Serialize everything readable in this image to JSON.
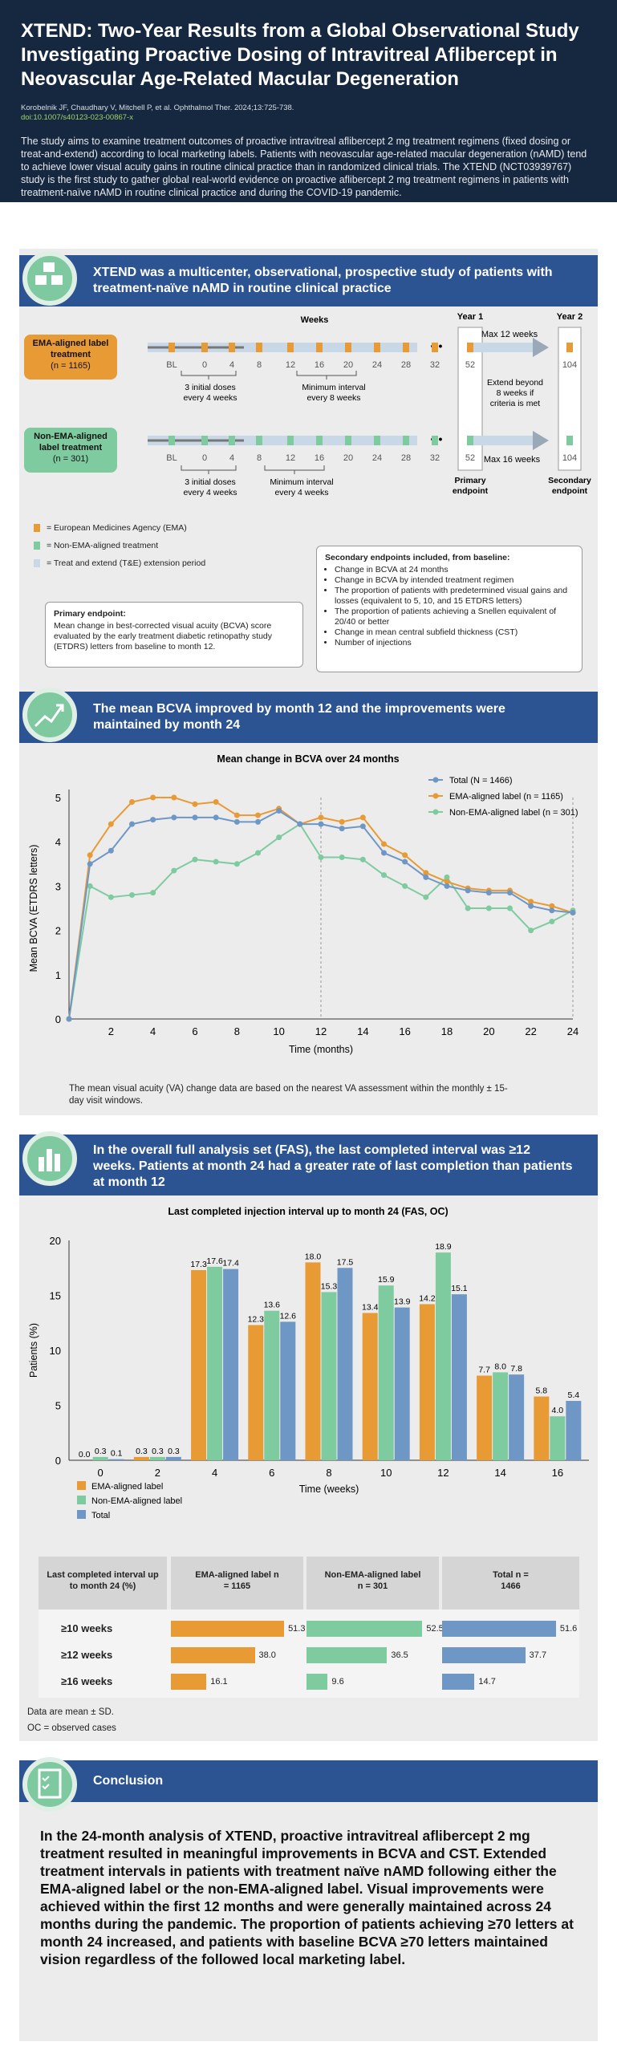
{
  "header": {
    "title": "XTEND: Two-Year Results from a Global Observational Study Investigating Proactive Dosing of Intravitreal Aflibercept in Neovascular Age-Related Macular Degeneration",
    "citation": "Korobelnik JF, Chaudhary V, Mitchell P, et al. Ophthalmol Ther. 2024;13:725-738.",
    "doi": "doi:10.1007/s40123-023-00867-x",
    "intro": "The study aims to examine treatment outcomes of proactive intravitreal aflibercept 2 mg treatment regimens (fixed dosing or treat-and-extend) according to local marketing labels. Patients with neovascular age-related macular degeneration (nAMD) tend to achieve lower visual acuity gains in routine clinical practice than in randomized clinical trials. The XTEND (NCT03939767) study is the first study to gather global real-world evidence on proactive aflibercept 2 mg treatment regimens in patients with treatment-naïve nAMD in routine clinical practice and during the COVID-19 pandemic."
  },
  "section1": {
    "banner": "XTEND was a multicenter, observational, prospective study of patients with treatment-naïve nAMD in routine clinical practice",
    "weeks_label": "Weeks",
    "year1": "Year 1",
    "year2": "Year 2",
    "ema_label": "EMA-aligned label treatment",
    "ema_n": "(n = 1165)",
    "nonema_label": "Non-EMA-aligned label treatment",
    "nonema_n": "(n = 301)",
    "ema_ticks": [
      "BL",
      "0",
      "4",
      "8",
      "12",
      "16",
      "20",
      "24",
      "28",
      "32"
    ],
    "nonema_ticks": [
      "BL",
      "0",
      "4",
      "8",
      "12",
      "16",
      "20",
      "24",
      "28",
      "32"
    ],
    "ema_52": "52",
    "ema_104": "104",
    "nonema_52": "52",
    "nonema_104": "104",
    "max12": "Max 12 weeks",
    "max16": "Max 16 weeks",
    "extend": "Extend beyond 8 weeks if criteria is met",
    "ema_initial": "3 initial doses every 4 weeks",
    "ema_min": "Minimum interval every 8 weeks",
    "nonema_initial": "3 initial doses every 4 weeks",
    "nonema_min": "Minimum interval every 4 weeks",
    "primary_endpoint_marker": "Primary endpoint",
    "secondary_endpoint_marker": "Secondary endpoint",
    "legend": [
      {
        "text": "= European Medicines Agency (EMA)",
        "color": "#e89a35"
      },
      {
        "text": "= Non-EMA-aligned treatment",
        "color": "#7ecba0"
      },
      {
        "text": "= Treat and extend (T&E) extension period",
        "color": "#c9d8e6"
      }
    ],
    "primary_title": "Primary endpoint:",
    "primary_text": "Mean change in best-corrected visual acuity (BCVA) score evaluated by the early treatment diabetic retinopathy study (ETDRS) letters from baseline to month 12.",
    "secondary_title": "Secondary endpoints included, from baseline:",
    "secondary_items": [
      "Change in BCVA at 24 months",
      "Change in BCVA by intended treatment regimen",
      "The proportion of patients with predetermined visual gains and losses (equivalent to 5, 10, and 15 ETDRS letters)",
      "The proportion of patients achieving a Snellen equivalent of 20/40 or better",
      "Change in mean central subfield thickness (CST)",
      "Number of injections"
    ]
  },
  "section2": {
    "banner": "The mean BCVA improved by month 12 and the improvements were maintained by month 24",
    "footnote": "The mean visual acuity (VA) change data are based on the nearest VA assessment within the monthly ± 15-day visit windows."
  },
  "section3": {
    "banner": "In the overall full analysis set (FAS), the last completed interval was ≥12 weeks. Patients at month 24 had a greater rate of last completion than patients at month 12",
    "table": {
      "headers": [
        "Last completed interval up to month 24 (%)",
        "EMA-aligned label n = 1165",
        "Non-EMA-aligned label n = 301",
        "Total n = 1466"
      ],
      "rows": [
        {
          "label": "≥10 weeks",
          "values": [
            51.3,
            52.5,
            51.6
          ]
        },
        {
          "label": "≥12 weeks",
          "values": [
            38.0,
            36.5,
            37.7
          ]
        },
        {
          "label": "≥16 weeks",
          "values": [
            16.1,
            9.6,
            14.7
          ]
        }
      ]
    },
    "note1": "Data are mean ± SD.",
    "note2": "OC = observed cases"
  },
  "section4": {
    "banner": "Conclusion",
    "text": "In the 24-month analysis of XTEND, proactive intravitreal aflibercept 2 mg treatment resulted in meaningful improvements in BCVA and CST. Extended treatment intervals in patients with treatment naïve nAMD following either the EMA-aligned label or the non-EMA-aligned label. Visual improvements were achieved within the first 12 months and were generally maintained across 24 months during the pandemic. The proportion of patients achieving ≥70 letters at month 24 increased, and patients with baseline BCVA ≥70 letters maintained vision regardless of the followed local marketing label."
  },
  "colors": {
    "ema": "#e89a35",
    "nonema": "#7ecba0",
    "total": "#6f97c6",
    "banner": "#2c5492",
    "header": "#16283f"
  },
  "chart_data": [
    {
      "type": "line",
      "title": "Mean change in BCVA over 24 months",
      "xlabel": "Time (months)",
      "ylabel": "Mean BCVA (ETDRS letters)",
      "xlim": [
        0,
        24
      ],
      "ylim": [
        0,
        5
      ],
      "xticks": [
        2,
        4,
        6,
        8,
        10,
        12,
        14,
        16,
        18,
        20,
        22,
        24
      ],
      "yticks": [
        0,
        1,
        2,
        3,
        4,
        5
      ],
      "legend_position": "top-right",
      "x": [
        0,
        1,
        2,
        3,
        4,
        5,
        6,
        7,
        8,
        9,
        10,
        11,
        12,
        13,
        14,
        15,
        16,
        17,
        18,
        19,
        20,
        21,
        22,
        23,
        24
      ],
      "series": [
        {
          "name": "Total (N = 1466)",
          "color": "#6f97c6",
          "values": [
            0,
            3.5,
            3.8,
            4.4,
            4.5,
            4.55,
            4.55,
            4.55,
            4.45,
            4.45,
            4.7,
            4.4,
            4.4,
            4.3,
            4.35,
            3.75,
            3.55,
            3.2,
            3.0,
            2.9,
            2.85,
            2.85,
            2.55,
            2.45,
            2.4
          ]
        },
        {
          "name": "EMA-aligned label (n = 1165)",
          "color": "#e89a35",
          "values": [
            0,
            3.7,
            4.4,
            4.9,
            5.0,
            5.0,
            4.85,
            4.9,
            4.6,
            4.6,
            4.75,
            4.4,
            4.55,
            4.45,
            4.55,
            3.95,
            3.7,
            3.3,
            3.1,
            2.95,
            2.9,
            2.9,
            2.65,
            2.55,
            2.4
          ]
        },
        {
          "name": "Non-EMA-aligned label (n = 301)",
          "color": "#7ecba0",
          "values": [
            0,
            3.0,
            2.75,
            2.8,
            2.85,
            3.35,
            3.6,
            3.55,
            3.5,
            3.75,
            4.1,
            4.4,
            3.65,
            3.65,
            3.6,
            3.25,
            3.0,
            2.75,
            3.2,
            2.5,
            2.5,
            2.5,
            2.0,
            2.2,
            2.45
          ]
        }
      ]
    },
    {
      "type": "bar",
      "title": "Last completed injection interval up to month 24 (FAS, OC)",
      "xlabel": "Time (weeks)",
      "ylabel": "Patients (%)",
      "ylim": [
        0,
        20
      ],
      "yticks": [
        0,
        5,
        10,
        15,
        20
      ],
      "categories": [
        "0",
        "2",
        "4",
        "6",
        "8",
        "10",
        "12",
        "14",
        "16"
      ],
      "series": [
        {
          "name": "EMA-aligned label",
          "color": "#e89a35",
          "values": [
            0.0,
            0.3,
            17.3,
            12.3,
            18.0,
            13.4,
            14.2,
            7.7,
            5.8
          ]
        },
        {
          "name": "Non-EMA-aligned label",
          "color": "#7ecba0",
          "values": [
            0.3,
            0.3,
            17.6,
            13.6,
            15.3,
            15.9,
            18.9,
            8.0,
            4.0
          ]
        },
        {
          "name": "Total",
          "color": "#6f97c6",
          "values": [
            0.1,
            0.3,
            17.4,
            12.6,
            17.5,
            13.9,
            15.1,
            7.8,
            5.4
          ]
        }
      ]
    }
  ]
}
